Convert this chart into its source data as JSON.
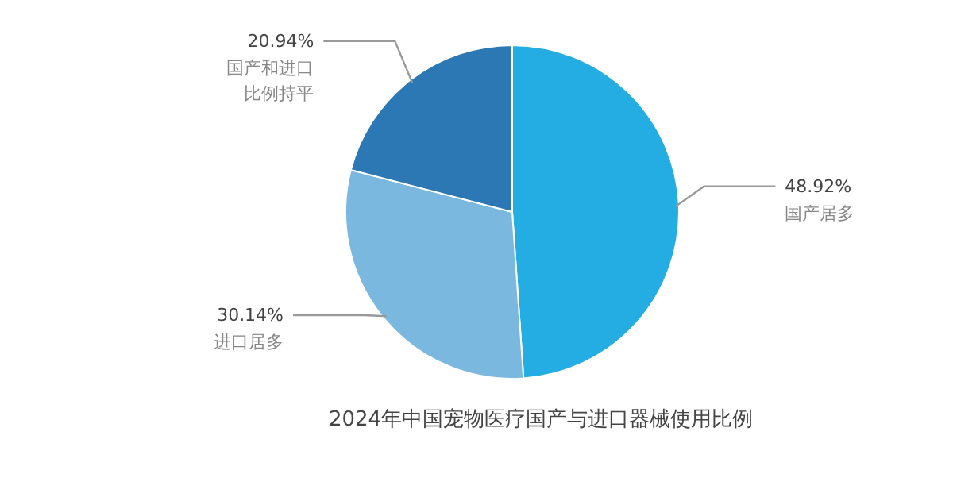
{
  "chart_data": {
    "type": "pie",
    "title": "2024年中国宠物医疗国产与进口器械使用比例",
    "categories": [
      "国产居多",
      "进口居多",
      "国产和进口比例持平"
    ],
    "values": [
      48.92,
      30.14,
      20.94
    ],
    "colors": [
      "#23ade2",
      "#7bb8e0",
      "#2b78b5"
    ],
    "value_labels": [
      "48.92%",
      "30.14%",
      "20.94%"
    ]
  }
}
